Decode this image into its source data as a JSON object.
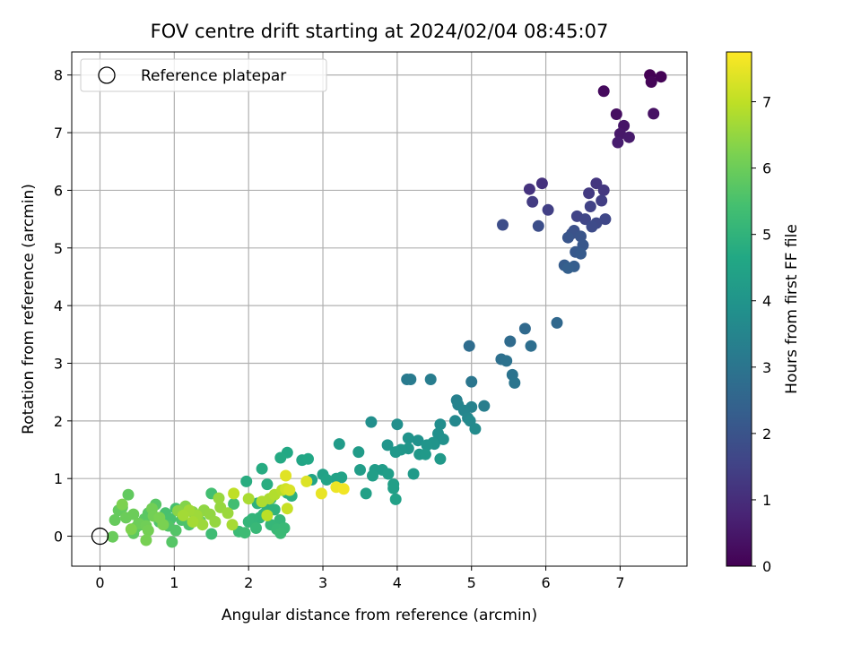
{
  "chart_data": {
    "type": "scatter",
    "title": "FOV centre drift starting at 2024/02/04 08:45:07",
    "xlabel": "Angular distance from reference (arcmin)",
    "ylabel": "Rotation from reference (arcmin)",
    "xlim": [
      -0.38,
      7.9
    ],
    "ylim": [
      -0.52,
      8.4
    ],
    "xticks": [
      0,
      1,
      2,
      3,
      4,
      5,
      6,
      7
    ],
    "yticks": [
      0,
      1,
      2,
      3,
      4,
      5,
      6,
      7,
      8
    ],
    "grid": true,
    "legend": {
      "placement": "top-left",
      "label": "Reference platepar"
    },
    "reference_point": {
      "x": 0,
      "y": 0
    },
    "colorbar": {
      "label": "Hours from first FF file",
      "colormap": "viridis",
      "range": [
        0,
        7.75
      ],
      "ticks": [
        0,
        1,
        2,
        3,
        4,
        5,
        6,
        7
      ]
    },
    "series": [
      {
        "values_format": "[x, y, hours]",
        "points": [
          [
            7.4,
            8.0,
            0.0
          ],
          [
            7.55,
            7.97,
            0.05
          ],
          [
            7.42,
            7.88,
            0.1
          ],
          [
            6.78,
            7.72,
            0.2
          ],
          [
            6.95,
            7.32,
            0.3
          ],
          [
            7.45,
            7.33,
            0.35
          ],
          [
            7.05,
            7.12,
            0.45
          ],
          [
            7.0,
            6.98,
            0.5
          ],
          [
            7.12,
            6.92,
            0.55
          ],
          [
            6.97,
            6.83,
            0.6
          ],
          [
            5.95,
            6.12,
            1.1
          ],
          [
            5.78,
            6.02,
            1.15
          ],
          [
            6.68,
            6.12,
            1.2
          ],
          [
            6.78,
            6.0,
            1.25
          ],
          [
            6.58,
            5.95,
            1.3
          ],
          [
            5.82,
            5.8,
            1.35
          ],
          [
            6.75,
            5.82,
            1.4
          ],
          [
            6.03,
            5.66,
            1.45
          ],
          [
            6.6,
            5.72,
            1.5
          ],
          [
            6.42,
            5.55,
            1.55
          ],
          [
            6.53,
            5.5,
            1.6
          ],
          [
            6.8,
            5.5,
            1.65
          ],
          [
            6.68,
            5.43,
            1.7
          ],
          [
            6.62,
            5.37,
            1.75
          ],
          [
            5.42,
            5.4,
            1.8
          ],
          [
            5.9,
            5.38,
            1.85
          ],
          [
            6.38,
            5.3,
            1.9
          ],
          [
            6.35,
            5.25,
            1.95
          ],
          [
            6.47,
            5.2,
            2.0
          ],
          [
            6.3,
            5.18,
            2.05
          ],
          [
            6.5,
            5.05,
            2.1
          ],
          [
            6.4,
            4.93,
            2.15
          ],
          [
            6.47,
            4.9,
            2.2
          ],
          [
            6.25,
            4.7,
            2.25
          ],
          [
            6.38,
            4.68,
            2.3
          ],
          [
            6.3,
            4.65,
            2.35
          ],
          [
            6.15,
            3.7,
            2.6
          ],
          [
            5.72,
            3.6,
            2.65
          ],
          [
            5.52,
            3.38,
            2.7
          ],
          [
            4.97,
            3.3,
            2.75
          ],
          [
            5.8,
            3.3,
            2.8
          ],
          [
            5.4,
            3.07,
            2.85
          ],
          [
            5.47,
            3.04,
            2.9
          ],
          [
            5.55,
            2.8,
            2.95
          ],
          [
            5.58,
            2.66,
            3.0
          ],
          [
            5.0,
            2.68,
            3.05
          ],
          [
            4.13,
            2.72,
            3.15
          ],
          [
            4.18,
            2.72,
            3.2
          ],
          [
            4.45,
            2.72,
            3.25
          ],
          [
            5.17,
            2.26,
            3.3
          ],
          [
            4.8,
            2.36,
            3.35
          ],
          [
            5.0,
            2.24,
            3.4
          ],
          [
            4.82,
            2.28,
            3.45
          ],
          [
            4.9,
            2.18,
            3.5
          ],
          [
            4.95,
            2.05,
            3.55
          ],
          [
            4.78,
            2.0,
            3.6
          ],
          [
            4.98,
            2.0,
            3.65
          ],
          [
            5.05,
            1.86,
            3.7
          ],
          [
            4.58,
            1.94,
            3.75
          ],
          [
            3.65,
            1.98,
            3.8
          ],
          [
            4.0,
            1.94,
            3.82
          ],
          [
            4.55,
            1.78,
            3.85
          ],
          [
            4.62,
            1.68,
            3.88
          ],
          [
            4.5,
            1.6,
            3.9
          ],
          [
            4.28,
            1.66,
            3.92
          ],
          [
            4.15,
            1.7,
            3.95
          ],
          [
            4.48,
            1.62,
            3.97
          ],
          [
            4.4,
            1.58,
            4.0
          ],
          [
            3.87,
            1.58,
            4.02
          ],
          [
            4.15,
            1.52,
            4.05
          ],
          [
            4.05,
            1.5,
            4.08
          ],
          [
            3.98,
            1.46,
            4.1
          ],
          [
            4.3,
            1.42,
            4.12
          ],
          [
            4.38,
            1.42,
            4.14
          ],
          [
            4.58,
            1.34,
            4.16
          ],
          [
            4.22,
            1.08,
            4.18
          ],
          [
            3.22,
            1.6,
            4.2
          ],
          [
            3.48,
            1.46,
            4.22
          ],
          [
            3.8,
            1.15,
            4.24
          ],
          [
            3.7,
            1.15,
            4.26
          ],
          [
            3.5,
            1.15,
            4.28
          ],
          [
            3.88,
            1.08,
            4.3
          ],
          [
            3.67,
            1.05,
            4.32
          ],
          [
            3.95,
            0.9,
            4.34
          ],
          [
            3.95,
            0.83,
            4.36
          ],
          [
            3.58,
            0.74,
            4.38
          ],
          [
            3.98,
            0.64,
            4.4
          ],
          [
            3.0,
            1.07,
            4.42
          ],
          [
            3.25,
            1.02,
            4.44
          ],
          [
            3.18,
            1.0,
            4.46
          ],
          [
            3.05,
            0.98,
            4.48
          ],
          [
            2.85,
            0.98,
            4.5
          ],
          [
            2.72,
            1.32,
            4.55
          ],
          [
            2.8,
            1.34,
            4.6
          ],
          [
            2.52,
            1.45,
            4.65
          ],
          [
            2.43,
            1.36,
            4.7
          ],
          [
            2.18,
            1.17,
            4.75
          ],
          [
            1.97,
            0.95,
            4.8
          ],
          [
            2.25,
            0.9,
            4.82
          ],
          [
            2.52,
            0.75,
            4.85
          ],
          [
            2.58,
            0.7,
            4.88
          ],
          [
            2.3,
            0.65,
            4.9
          ],
          [
            2.12,
            0.57,
            4.92
          ],
          [
            2.25,
            0.5,
            4.95
          ],
          [
            2.35,
            0.46,
            4.98
          ],
          [
            2.2,
            0.38,
            5.0
          ],
          [
            2.15,
            0.32,
            5.02
          ],
          [
            2.05,
            0.3,
            5.05
          ],
          [
            2.0,
            0.25,
            5.08
          ],
          [
            2.42,
            0.28,
            5.1
          ],
          [
            2.3,
            0.2,
            5.12
          ],
          [
            2.1,
            0.14,
            5.15
          ],
          [
            2.38,
            0.12,
            5.18
          ],
          [
            2.48,
            0.14,
            5.2
          ],
          [
            2.43,
            0.05,
            5.22
          ],
          [
            1.87,
            0.08,
            5.25
          ],
          [
            1.95,
            0.06,
            5.28
          ],
          [
            1.5,
            0.04,
            5.3
          ],
          [
            1.8,
            0.56,
            5.35
          ],
          [
            1.5,
            0.74,
            5.4
          ],
          [
            1.02,
            0.48,
            5.45
          ],
          [
            0.88,
            0.4,
            5.48
          ],
          [
            0.95,
            0.3,
            5.5
          ],
          [
            1.1,
            0.28,
            5.52
          ],
          [
            1.2,
            0.2,
            5.55
          ],
          [
            1.35,
            0.26,
            5.58
          ],
          [
            0.8,
            0.25,
            5.6
          ],
          [
            0.92,
            0.18,
            5.62
          ],
          [
            1.02,
            0.1,
            5.65
          ],
          [
            0.97,
            -0.1,
            5.68
          ],
          [
            0.75,
            0.55,
            5.7
          ],
          [
            0.65,
            0.4,
            5.72
          ],
          [
            0.6,
            0.3,
            5.75
          ],
          [
            0.55,
            0.2,
            5.78
          ],
          [
            0.48,
            0.15,
            5.8
          ],
          [
            0.45,
            0.05,
            5.82
          ],
          [
            0.38,
            0.72,
            5.85
          ],
          [
            0.3,
            0.5,
            5.88
          ],
          [
            0.25,
            0.45,
            5.9
          ],
          [
            0.2,
            0.28,
            5.92
          ],
          [
            0.17,
            -0.01,
            5.95
          ],
          [
            0.35,
            0.32,
            5.98
          ],
          [
            0.45,
            0.38,
            6.0
          ],
          [
            0.52,
            0.22,
            6.02
          ],
          [
            0.62,
            0.18,
            6.05
          ],
          [
            0.7,
            0.48,
            6.08
          ],
          [
            0.72,
            0.35,
            6.1
          ],
          [
            0.65,
            0.1,
            6.12
          ],
          [
            0.62,
            -0.07,
            6.15
          ],
          [
            0.8,
            0.32,
            6.18
          ],
          [
            0.85,
            0.2,
            6.2
          ],
          [
            0.3,
            0.55,
            6.22
          ],
          [
            0.42,
            0.12,
            6.25
          ],
          [
            1.15,
            0.52,
            6.3
          ],
          [
            1.25,
            0.42,
            6.35
          ],
          [
            1.05,
            0.44,
            6.38
          ],
          [
            1.32,
            0.3,
            6.4
          ],
          [
            1.4,
            0.45,
            6.45
          ],
          [
            1.48,
            0.38,
            6.48
          ],
          [
            1.55,
            0.25,
            6.5
          ],
          [
            1.62,
            0.5,
            6.52
          ],
          [
            1.6,
            0.66,
            6.55
          ],
          [
            1.72,
            0.4,
            6.58
          ],
          [
            1.38,
            0.2,
            6.6
          ],
          [
            1.3,
            0.36,
            6.62
          ],
          [
            1.2,
            0.45,
            6.65
          ],
          [
            1.12,
            0.36,
            6.68
          ],
          [
            1.25,
            0.25,
            6.7
          ],
          [
            1.78,
            0.2,
            6.72
          ],
          [
            2.0,
            0.65,
            6.75
          ],
          [
            2.28,
            0.65,
            6.78
          ],
          [
            2.18,
            0.6,
            6.8
          ],
          [
            2.35,
            0.72,
            6.85
          ],
          [
            2.45,
            0.8,
            6.9
          ],
          [
            2.25,
            0.36,
            6.95
          ],
          [
            1.8,
            0.74,
            7.0
          ],
          [
            2.52,
            0.48,
            7.1
          ],
          [
            2.5,
            0.82,
            7.2
          ],
          [
            2.55,
            0.8,
            7.3
          ],
          [
            2.78,
            0.95,
            7.35
          ],
          [
            2.5,
            1.05,
            7.4
          ],
          [
            2.98,
            0.74,
            7.5
          ],
          [
            3.18,
            0.85,
            7.55
          ],
          [
            3.28,
            0.82,
            7.6
          ]
        ]
      }
    ]
  }
}
